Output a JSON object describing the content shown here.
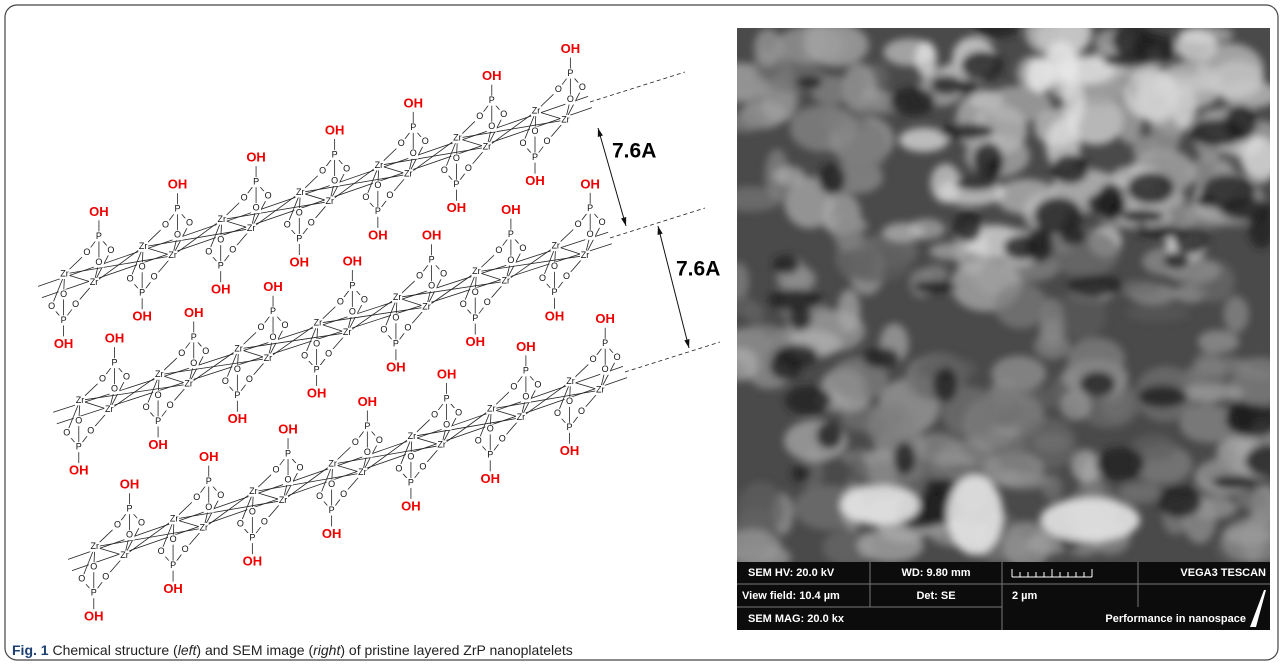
{
  "figure": {
    "structure": {
      "atoms": {
        "hydroxyl": "OH",
        "phosphorus": "P",
        "oxygen": "O",
        "zirconium": "Zr"
      },
      "spacings": [
        "7.6A",
        "7.6A"
      ]
    },
    "sem": {
      "info": {
        "hv": "SEM HV: 20.0 kV",
        "wd": "WD: 9.80 mm",
        "brand": "VEGA3 TESCAN",
        "view_field": "View field: 10.4 µm",
        "detector": "Det: SE",
        "scale": "2 µm",
        "slogan": "Performance in nanospace",
        "mag": "SEM MAG: 20.0 kx"
      }
    },
    "caption": {
      "label": "Fig. 1",
      "parts": [
        " Chemical structure (",
        "left",
        ") and SEM image (",
        "right",
        ") of pristine layered ZrP nanoplatelets"
      ]
    }
  }
}
